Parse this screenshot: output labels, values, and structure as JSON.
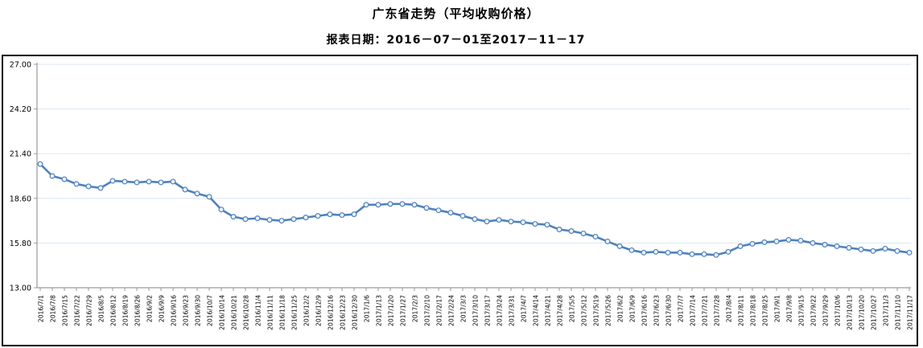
{
  "header": {
    "title": "广东省走势（平均收购价格）",
    "subtitle": "报表日期：2016－07－01至2017－11－17"
  },
  "chart_data": {
    "type": "line",
    "title": "广东省走势（平均收购价格）",
    "subtitle": "报表日期：2016－07－01至2017－11－17",
    "ylabel": "",
    "xlabel": "",
    "ylim": [
      13.0,
      27.0
    ],
    "ytick_interval": 2.8,
    "ytick_labels": [
      "27.00",
      "24.20",
      "21.40",
      "18.60",
      "15.80",
      "13.00"
    ],
    "grid": true,
    "legend_position": "none",
    "line_color": "#4f81bd",
    "marker_style": "hollow-circle",
    "marker_fill": "#eaf1f8",
    "gridline_color": "#dce6f0",
    "axis_color": "#9a9a9a",
    "categories": [
      "2016/7/1",
      "2016/7/8",
      "2016/7/15",
      "2016/7/22",
      "2016/7/29",
      "2016/8/5",
      "2016/8/12",
      "2016/8/19",
      "2016/8/26",
      "2016/9/2",
      "2016/9/9",
      "2016/9/16",
      "2016/9/23",
      "2016/9/30",
      "2016/10/7",
      "2016/10/14",
      "2016/10/21",
      "2016/10/28",
      "2016/11/4",
      "2016/11/11",
      "2016/11/18",
      "2016/11/25",
      "2016/12/2",
      "2016/12/9",
      "2016/12/16",
      "2016/12/23",
      "2016/12/30",
      "2017/1/6",
      "2017/1/13",
      "2017/1/20",
      "2017/1/27",
      "2017/2/3",
      "2017/2/10",
      "2017/2/17",
      "2017/2/24",
      "2017/3/3",
      "2017/3/10",
      "2017/3/17",
      "2017/3/24",
      "2017/3/31",
      "2017/4/7",
      "2017/4/14",
      "2017/4/21",
      "2017/4/28",
      "2017/5/5",
      "2017/5/12",
      "2017/5/19",
      "2017/5/26",
      "2017/6/2",
      "2017/6/9",
      "2017/6/16",
      "2017/6/23",
      "2017/6/30",
      "2017/7/7",
      "2017/7/14",
      "2017/7/21",
      "2017/7/28",
      "2017/8/4",
      "2017/8/11",
      "2017/8/18",
      "2017/8/25",
      "2017/9/1",
      "2017/9/8",
      "2017/9/15",
      "2017/9/22",
      "2017/9/29",
      "2017/10/6",
      "2017/10/13",
      "2017/10/20",
      "2017/10/27",
      "2017/11/3",
      "2017/11/10",
      "2017/11/17"
    ],
    "values": [
      20.75,
      20.0,
      19.8,
      19.5,
      19.35,
      19.25,
      19.7,
      19.65,
      19.6,
      19.65,
      19.6,
      19.65,
      19.15,
      18.9,
      18.7,
      17.9,
      17.45,
      17.3,
      17.35,
      17.25,
      17.2,
      17.3,
      17.4,
      17.5,
      17.6,
      17.55,
      17.6,
      18.2,
      18.2,
      18.25,
      18.25,
      18.2,
      18.0,
      17.85,
      17.7,
      17.5,
      17.3,
      17.15,
      17.25,
      17.15,
      17.1,
      17.0,
      16.95,
      16.65,
      16.55,
      16.4,
      16.2,
      15.9,
      15.6,
      15.35,
      15.2,
      15.25,
      15.2,
      15.2,
      15.1,
      15.1,
      15.05,
      15.25,
      15.6,
      15.75,
      15.85,
      15.9,
      16.0,
      15.95,
      15.8,
      15.7,
      15.6,
      15.5,
      15.4,
      15.3,
      15.45,
      15.3,
      15.2
    ]
  }
}
